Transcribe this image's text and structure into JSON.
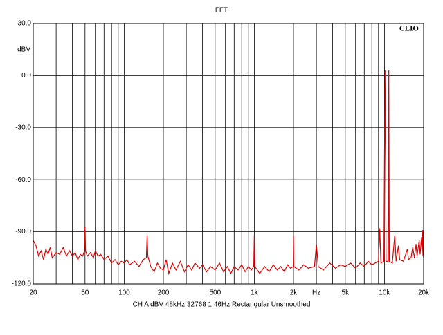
{
  "chart_data": {
    "type": "line",
    "title": "FFT",
    "brand": "CLIO",
    "ylabel": "dBV",
    "xlabel": "Hz",
    "footer": "CH A   dBV   48kHz   32768   1.46Hz   Rectangular   Unsmoothed",
    "xscale": "log",
    "grid": true,
    "xlim": [
      20,
      20000
    ],
    "ylim": [
      -120,
      30
    ],
    "yticks": [
      {
        "value": 30,
        "label": "30.0"
      },
      {
        "value": 0,
        "label": "0.0"
      },
      {
        "value": -30,
        "label": "-30.0"
      },
      {
        "value": -60,
        "label": "-60.0"
      },
      {
        "value": -90,
        "label": "-90.0"
      },
      {
        "value": -120,
        "label": "-120.0"
      }
    ],
    "xticks": [
      20,
      50,
      100,
      200,
      500,
      {
        "value": 1000,
        "label": "1k"
      },
      {
        "value": 2000,
        "label": "2k"
      },
      {
        "value": 5000,
        "label": "5k"
      },
      {
        "value": 10000,
        "label": "10k"
      },
      {
        "value": 20000,
        "label": "20k"
      }
    ],
    "xgrid": [
      20,
      30,
      40,
      50,
      60,
      70,
      80,
      90,
      100,
      200,
      300,
      400,
      500,
      600,
      700,
      800,
      900,
      1000,
      2000,
      3000,
      4000,
      5000,
      6000,
      7000,
      8000,
      9000,
      10000,
      20000
    ],
    "xlabel_at": 3000,
    "series": [
      {
        "name": "CH A",
        "color": "#e00000",
        "x": [
          20,
          21,
          22,
          23,
          24,
          25,
          26,
          27,
          28,
          30,
          32,
          34,
          36,
          38,
          40,
          42,
          44,
          46,
          48,
          49.5,
          50,
          50.5,
          52,
          55,
          58,
          60,
          63,
          66,
          70,
          75,
          80,
          85,
          90,
          95,
          100,
          105,
          110,
          120,
          130,
          140,
          148,
          150,
          152,
          160,
          170,
          180,
          190,
          200,
          210,
          220,
          235,
          250,
          270,
          290,
          310,
          330,
          350,
          380,
          400,
          430,
          460,
          500,
          540,
          580,
          620,
          660,
          700,
          750,
          800,
          850,
          900,
          950,
          990,
          1000,
          1010,
          1100,
          1200,
          1300,
          1400,
          1500,
          1600,
          1700,
          1800,
          1900,
          1990,
          2000,
          2010,
          2200,
          2400,
          2600,
          2900,
          3000,
          3100,
          3400,
          3800,
          4200,
          4600,
          5000,
          5500,
          6000,
          6500,
          7000,
          7500,
          8000,
          8500,
          9000,
          9200,
          9400,
          9900,
          10100,
          10300,
          10700,
          10800,
          10900,
          11500,
          12000,
          12300,
          12800,
          13100,
          14000,
          15000,
          15300,
          16000,
          16500,
          17000,
          17500,
          17800,
          18500,
          18800,
          19300,
          19500,
          19700,
          19900,
          20000
        ],
        "values": [
          -95,
          -98,
          -104,
          -101,
          -106,
          -100,
          -103,
          -99,
          -105,
          -102,
          -103,
          -99,
          -104,
          -101,
          -104,
          -102,
          -106,
          -103,
          -104,
          -101,
          -87,
          -101,
          -104,
          -102,
          -105,
          -101,
          -104,
          -103,
          -106,
          -104,
          -108,
          -106,
          -109,
          -107,
          -108,
          -106,
          -109,
          -107,
          -110,
          -106,
          -105,
          -92,
          -104,
          -110,
          -113,
          -108,
          -111,
          -112,
          -106,
          -114,
          -108,
          -112,
          -107,
          -113,
          -109,
          -112,
          -108,
          -111,
          -109,
          -113,
          -110,
          -112,
          -108,
          -113,
          -110,
          -114,
          -110,
          -112,
          -109,
          -113,
          -110,
          -112,
          -110,
          -92,
          -110,
          -114,
          -110,
          -113,
          -109,
          -112,
          -110,
          -113,
          -109,
          -111,
          -110,
          -92,
          -110,
          -112,
          -109,
          -111,
          -110,
          -97,
          -110,
          -112,
          -108,
          -111,
          -109,
          -110,
          -108,
          -111,
          -108,
          -110,
          -107,
          -109,
          -108,
          -107,
          -88,
          -108,
          -107,
          3,
          -107,
          -107,
          3,
          -107,
          -108,
          -92,
          -107,
          -98,
          -106,
          -107,
          -100,
          -106,
          -105,
          -99,
          -105,
          -97,
          -104,
          -95,
          -103,
          -93,
          -104,
          -89,
          -103,
          -105
        ]
      }
    ]
  }
}
